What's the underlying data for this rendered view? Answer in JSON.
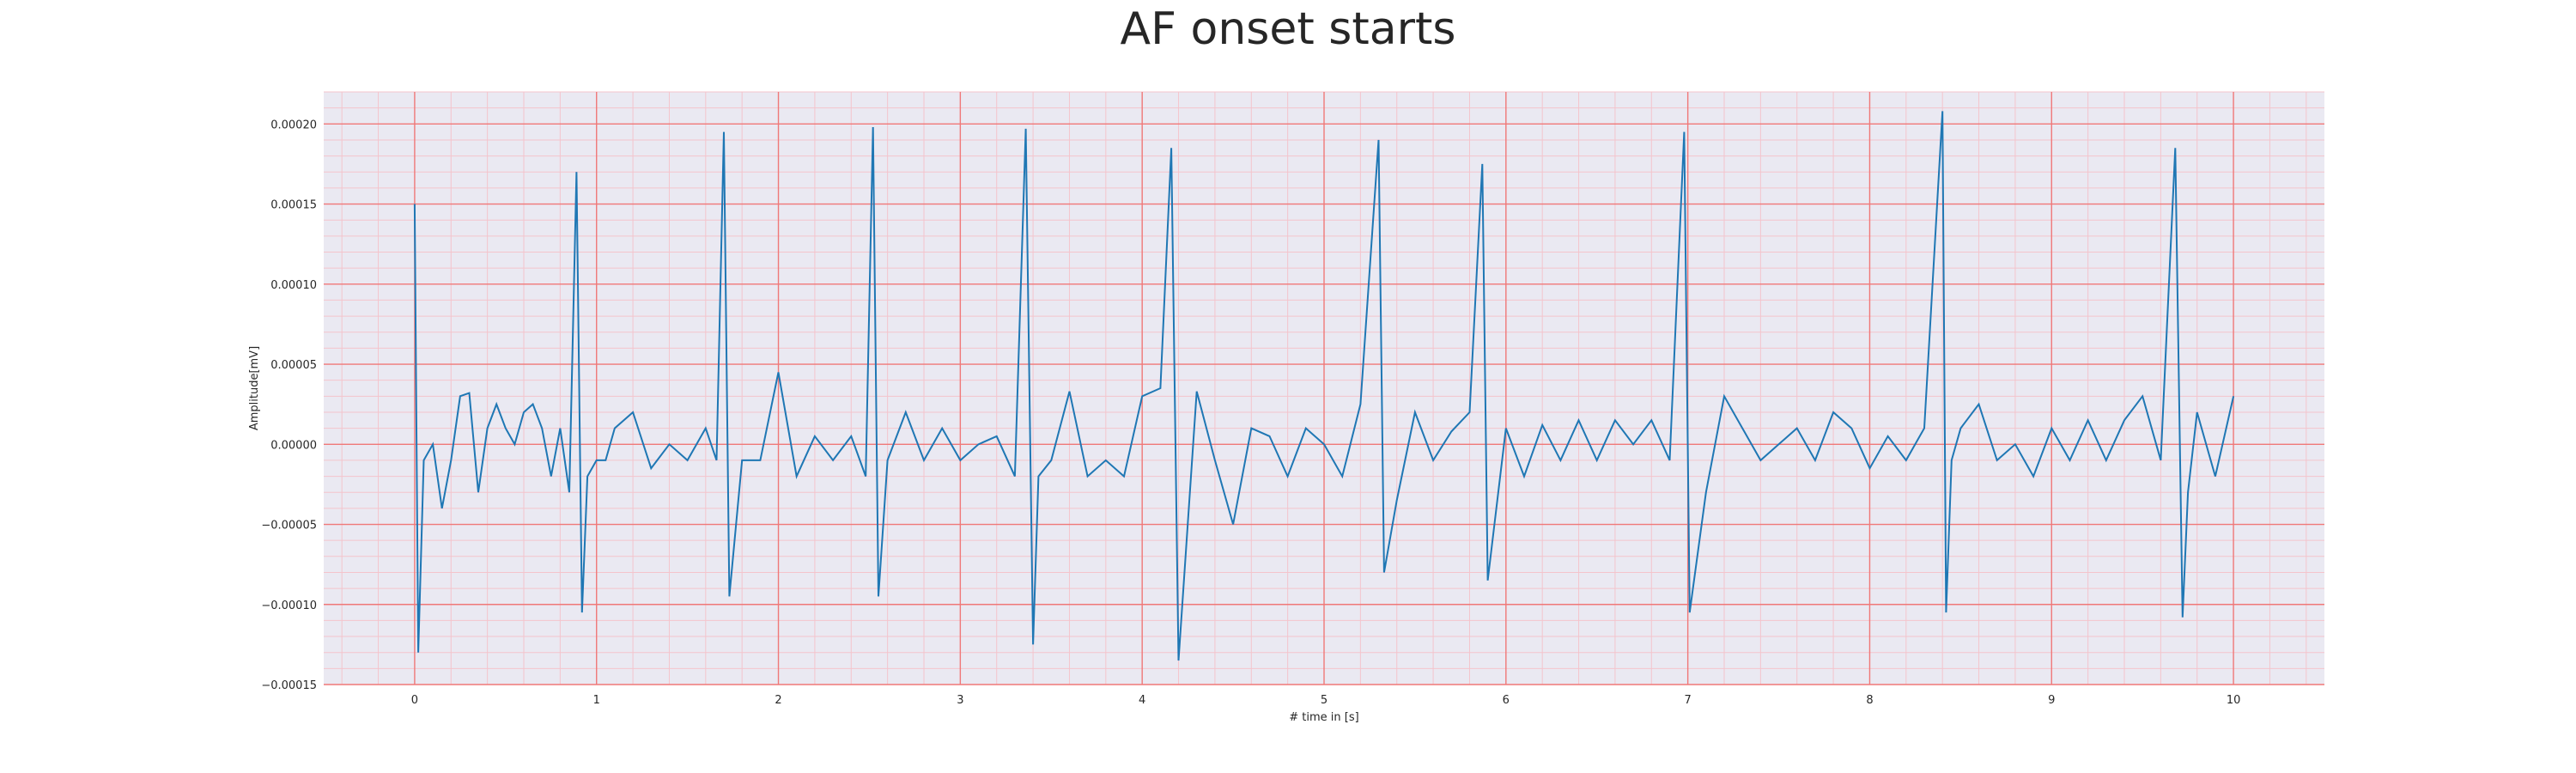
{
  "chart_data": {
    "type": "line",
    "title": "AF onset starts",
    "xlabel": "# time in [s]",
    "ylabel": "Amplitude[mV]",
    "xlim": [
      -0.5,
      10.5
    ],
    "ylim": [
      -0.00015,
      0.00022
    ],
    "grid": true,
    "x_ticks": [
      0,
      1,
      2,
      3,
      4,
      5,
      6,
      7,
      8,
      9,
      10
    ],
    "x_tick_labels": [
      "0",
      "1",
      "2",
      "3",
      "4",
      "5",
      "6",
      "7",
      "8",
      "9",
      "10"
    ],
    "y_ticks": [
      -0.00015,
      -0.0001,
      -5e-05,
      0,
      5e-05,
      0.0001,
      0.00015,
      0.0002
    ],
    "y_tick_labels": [
      "−0.00015",
      "−0.00010",
      "−0.00005",
      "0.00000",
      "0.00005",
      "0.00010",
      "0.00015",
      "0.00020"
    ],
    "colors": {
      "line": "#1f77b4",
      "plot_bg": "#eae9f2",
      "major_grid": "#f07878",
      "minor_grid": "#f4c4cc"
    },
    "series": [
      {
        "x": [
          0.0,
          0.02,
          0.05,
          0.1,
          0.15,
          0.2,
          0.25,
          0.3,
          0.35,
          0.4,
          0.45,
          0.5,
          0.55,
          0.6,
          0.65,
          0.7,
          0.75,
          0.8,
          0.85,
          0.89,
          0.92,
          0.95,
          1.0,
          1.05,
          1.1,
          1.2,
          1.3,
          1.4,
          1.5,
          1.6,
          1.66,
          1.7,
          1.73,
          1.8,
          1.9,
          2.0,
          2.1,
          2.2,
          2.3,
          2.4,
          2.48,
          2.52,
          2.55,
          2.6,
          2.7,
          2.8,
          2.9,
          3.0,
          3.1,
          3.2,
          3.3,
          3.36,
          3.4,
          3.43,
          3.5,
          3.6,
          3.7,
          3.8,
          3.9,
          4.0,
          4.1,
          4.16,
          4.2,
          4.3,
          4.4,
          4.5,
          4.6,
          4.7,
          4.8,
          4.9,
          5.0,
          5.1,
          5.2,
          5.3,
          5.33,
          5.4,
          5.5,
          5.6,
          5.7,
          5.8,
          5.87,
          5.9,
          6.0,
          6.1,
          6.2,
          6.3,
          6.4,
          6.5,
          6.6,
          6.7,
          6.8,
          6.9,
          6.98,
          7.01,
          7.1,
          7.2,
          7.3,
          7.4,
          7.5,
          7.6,
          7.7,
          7.8,
          7.9,
          8.0,
          8.1,
          8.2,
          8.3,
          8.4,
          8.42,
          8.45,
          8.5,
          8.6,
          8.7,
          8.8,
          8.9,
          9.0,
          9.1,
          9.2,
          9.3,
          9.4,
          9.5,
          9.6,
          9.68,
          9.72,
          9.75,
          9.8,
          9.9,
          10.0
        ],
        "y": [
          0.00015,
          -0.00013,
          -1e-05,
          0.0,
          -4e-05,
          -1e-05,
          3e-05,
          3.2e-05,
          -3e-05,
          1e-05,
          2.5e-05,
          1e-05,
          0.0,
          2e-05,
          2.5e-05,
          1e-05,
          -2e-05,
          1e-05,
          -3e-05,
          0.00017,
          -0.000105,
          -2e-05,
          -1e-05,
          -1e-05,
          1e-05,
          2e-05,
          -1.5e-05,
          0.0,
          -1e-05,
          1e-05,
          -1e-05,
          0.000195,
          -9.5e-05,
          -1e-05,
          -1e-05,
          4.5e-05,
          -2e-05,
          5e-06,
          -1e-05,
          5e-06,
          -2e-05,
          0.000198,
          -9.5e-05,
          -1e-05,
          2e-05,
          -1e-05,
          1e-05,
          -1e-05,
          0.0,
          5e-06,
          -2e-05,
          0.000197,
          -0.000125,
          -2e-05,
          -1e-05,
          3.3e-05,
          -2e-05,
          -1e-05,
          -2e-05,
          3e-05,
          3.5e-05,
          0.000185,
          -0.000135,
          3.3e-05,
          -1e-05,
          -5e-05,
          1e-05,
          5e-06,
          -2e-05,
          1e-05,
          0.0,
          -2e-05,
          2.5e-05,
          0.00019,
          -8e-05,
          -3.5e-05,
          2e-05,
          -1e-05,
          8e-06,
          2e-05,
          0.000175,
          -8.5e-05,
          1e-05,
          -2e-05,
          1.2e-05,
          -1e-05,
          1.5e-05,
          -1e-05,
          1.5e-05,
          0.0,
          1.5e-05,
          -1e-05,
          0.000195,
          -0.000105,
          -3e-05,
          3e-05,
          1e-05,
          -1e-05,
          0.0,
          1e-05,
          -1e-05,
          2e-05,
          1e-05,
          -1.5e-05,
          5e-06,
          -1e-05,
          1e-05,
          0.000208,
          -0.000105,
          -1e-05,
          1e-05,
          2.5e-05,
          -1e-05,
          0.0,
          -2e-05,
          1e-05,
          -1e-05,
          1.5e-05,
          -1e-05,
          1.5e-05,
          3e-05,
          -1e-05,
          0.000185,
          -0.000108,
          -3e-05,
          2e-05,
          -2e-05,
          3e-05
        ]
      }
    ]
  }
}
